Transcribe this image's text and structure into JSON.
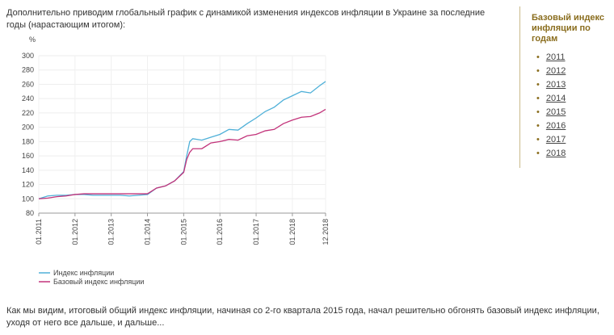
{
  "intro": "Дополнительно приводим глобальный график с динамикой изменения индексов инфляции в Украине за последние годы (нарастающим итогом):",
  "sidebar": {
    "title": "Базовый индекс инфляции по годам",
    "items": [
      "2011",
      "2012",
      "2013",
      "2014",
      "2015",
      "2016",
      "2017",
      "2018"
    ]
  },
  "outro": "Как мы видим, итоговый общий индекс инфляции, начиная со 2-го квартала 2015 года, начал решительно обгонять базовый индекс инфляции, уходя от него все дальше, и дальше...",
  "chart_data": {
    "type": "line",
    "y_label": "%",
    "x": [
      "01.2011",
      "04.2011",
      "07.2011",
      "10.2011",
      "01.2012",
      "04.2012",
      "07.2012",
      "10.2012",
      "01.2013",
      "04.2013",
      "07.2013",
      "10.2013",
      "01.2014",
      "04.2014",
      "07.2014",
      "10.2014",
      "01.2015",
      "02.2015",
      "03.2015",
      "04.2015",
      "07.2015",
      "10.2015",
      "01.2016",
      "04.2016",
      "07.2016",
      "10.2016",
      "01.2017",
      "04.2017",
      "07.2017",
      "10.2017",
      "01.2018",
      "04.2018",
      "07.2018",
      "10.2018",
      "12.2018"
    ],
    "series": [
      {
        "name": "Индекс инфляции",
        "color": "#4fb0d8",
        "values": [
          100,
          104,
          105,
          105,
          106,
          106,
          105,
          105,
          105,
          105,
          104,
          105,
          106,
          115,
          118,
          125,
          138,
          160,
          180,
          184,
          182,
          186,
          190,
          197,
          196,
          205,
          213,
          222,
          228,
          238,
          244,
          250,
          248,
          258,
          264
        ]
      },
      {
        "name": "Базовый индекс инфляции",
        "color": "#c2337a",
        "values": [
          100,
          101,
          103,
          104,
          106,
          107,
          107,
          107,
          107,
          107,
          107,
          107,
          107,
          115,
          118,
          125,
          137,
          155,
          165,
          170,
          170,
          178,
          180,
          183,
          182,
          188,
          190,
          195,
          197,
          205,
          210,
          214,
          215,
          220,
          225
        ]
      }
    ],
    "xticks": [
      "01.2011",
      "01.2012",
      "01.2013",
      "01.2014",
      "01.2015",
      "01.2016",
      "01.2017",
      "01.2018",
      "12.2018"
    ],
    "ylim": [
      80,
      300
    ],
    "yticks": [
      80,
      100,
      120,
      140,
      160,
      180,
      200,
      220,
      240,
      260,
      280,
      300
    ],
    "grid": true
  }
}
